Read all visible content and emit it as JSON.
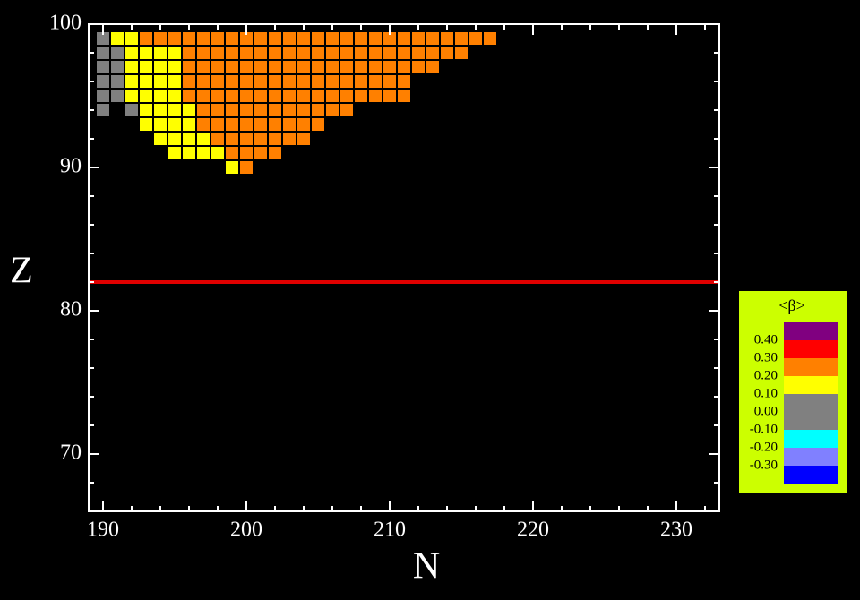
{
  "chart_data": {
    "type": "heatmap",
    "xlabel": "N",
    "ylabel": "Z",
    "xlim": [
      189,
      233
    ],
    "ylim": [
      66,
      100
    ],
    "xticks": [
      190,
      200,
      210,
      220,
      230
    ],
    "yticks": [
      70,
      80,
      90,
      100
    ],
    "xminorticks": [
      192,
      194,
      196,
      198,
      202,
      204,
      206,
      208,
      212,
      214,
      216,
      218,
      222,
      224,
      226,
      228,
      232
    ],
    "yminorticks": [
      68,
      72,
      74,
      76,
      78,
      82,
      84,
      86,
      88,
      92,
      94,
      96,
      98
    ],
    "reference_line": {
      "y": 82,
      "color": "#e00000"
    },
    "rows": [
      {
        "Z": 99,
        "N": [
          190,
          191,
          192,
          193,
          194,
          195,
          196,
          197,
          198,
          199,
          200,
          201,
          202,
          203,
          204,
          205,
          206,
          207,
          208,
          209,
          210,
          211,
          212,
          213,
          214,
          215,
          216,
          217
        ],
        "beta": [
          0,
          0.15,
          0.15,
          0.25,
          0.25,
          0.25,
          0.25,
          0.25,
          0.25,
          0.25,
          0.25,
          0.25,
          0.25,
          0.25,
          0.25,
          0.25,
          0.25,
          0.25,
          0.25,
          0.25,
          0.25,
          0.25,
          0.25,
          0.25,
          0.25,
          0.25,
          0.25,
          0.25
        ]
      },
      {
        "Z": 98,
        "N": [
          190,
          191,
          192,
          193,
          194,
          195,
          196,
          197,
          198,
          199,
          200,
          201,
          202,
          203,
          204,
          205,
          206,
          207,
          208,
          209,
          210,
          211,
          212,
          213,
          214,
          215
        ],
        "beta": [
          0,
          0,
          0.15,
          0.15,
          0.15,
          0.15,
          0.25,
          0.25,
          0.25,
          0.25,
          0.25,
          0.25,
          0.25,
          0.25,
          0.25,
          0.25,
          0.25,
          0.25,
          0.25,
          0.25,
          0.25,
          0.25,
          0.25,
          0.25,
          0.25,
          0.25
        ]
      },
      {
        "Z": 97,
        "N": [
          190,
          191,
          192,
          193,
          194,
          195,
          196,
          197,
          198,
          199,
          200,
          201,
          202,
          203,
          204,
          205,
          206,
          207,
          208,
          209,
          210,
          211,
          212,
          213
        ],
        "beta": [
          0,
          0,
          0.15,
          0.15,
          0.15,
          0.15,
          0.25,
          0.25,
          0.25,
          0.25,
          0.25,
          0.25,
          0.25,
          0.25,
          0.25,
          0.25,
          0.25,
          0.25,
          0.25,
          0.25,
          0.25,
          0.25,
          0.25,
          0.25
        ]
      },
      {
        "Z": 96,
        "N": [
          190,
          191,
          192,
          193,
          194,
          195,
          196,
          197,
          198,
          199,
          200,
          201,
          202,
          203,
          204,
          205,
          206,
          207,
          208,
          209,
          210,
          211
        ],
        "beta": [
          0,
          0,
          0.15,
          0.15,
          0.15,
          0.15,
          0.25,
          0.25,
          0.25,
          0.25,
          0.25,
          0.25,
          0.25,
          0.25,
          0.25,
          0.25,
          0.25,
          0.25,
          0.25,
          0.25,
          0.25,
          0.25
        ]
      },
      {
        "Z": 95,
        "N": [
          190,
          191,
          192,
          193,
          194,
          195,
          196,
          197,
          198,
          199,
          200,
          201,
          202,
          203,
          204,
          205,
          206,
          207,
          208,
          209,
          210,
          211
        ],
        "beta": [
          0,
          0,
          0.15,
          0.15,
          0.15,
          0.15,
          0.25,
          0.25,
          0.25,
          0.25,
          0.25,
          0.25,
          0.25,
          0.25,
          0.25,
          0.25,
          0.25,
          0.25,
          0.25,
          0.25,
          0.25,
          0.25
        ]
      },
      {
        "Z": 94,
        "N": [
          190,
          192,
          193,
          194,
          195,
          196,
          197,
          198,
          199,
          200,
          201,
          202,
          203,
          204,
          205,
          206,
          207
        ],
        "beta": [
          0,
          0,
          0.15,
          0.15,
          0.15,
          0.15,
          0.25,
          0.25,
          0.25,
          0.25,
          0.25,
          0.25,
          0.25,
          0.25,
          0.25,
          0.25,
          0.25
        ]
      },
      {
        "Z": 93,
        "N": [
          193,
          194,
          195,
          196,
          197,
          198,
          199,
          200,
          201,
          202,
          203,
          204,
          205
        ],
        "beta": [
          0.15,
          0.15,
          0.15,
          0.15,
          0.25,
          0.25,
          0.25,
          0.25,
          0.25,
          0.25,
          0.25,
          0.25,
          0.25
        ]
      },
      {
        "Z": 92,
        "N": [
          194,
          195,
          196,
          197,
          198,
          199,
          200,
          201,
          202,
          203,
          204
        ],
        "beta": [
          0.15,
          0.15,
          0.15,
          0.15,
          0.25,
          0.25,
          0.25,
          0.25,
          0.25,
          0.25,
          0.25
        ]
      },
      {
        "Z": 91,
        "N": [
          195,
          196,
          197,
          198,
          199,
          200,
          201,
          202
        ],
        "beta": [
          0.15,
          0.15,
          0.15,
          0.15,
          0.25,
          0.25,
          0.25,
          0.25
        ]
      },
      {
        "Z": 90,
        "N": [
          199,
          200
        ],
        "beta": [
          0.15,
          0.25
        ]
      }
    ],
    "colorbar": {
      "title": "<β>",
      "background": "#ccff00",
      "ticks": [
        {
          "value": 0.4,
          "label": "0.40"
        },
        {
          "value": 0.3,
          "label": "0.30"
        },
        {
          "value": 0.2,
          "label": "0.20"
        },
        {
          "value": 0.1,
          "label": "0.10"
        },
        {
          "value": 0,
          "label": "0.00"
        },
        {
          "value": -0.1,
          "label": "-0.10"
        },
        {
          "value": -0.2,
          "label": "-0.20"
        },
        {
          "value": -0.3,
          "label": "-0.30"
        }
      ],
      "colors": [
        "#800080",
        "#ff0000",
        "#ff8000",
        "#ffff00",
        "#808080",
        "#808080",
        "#00ffff",
        "#8080ff",
        "#0000ff"
      ]
    }
  }
}
